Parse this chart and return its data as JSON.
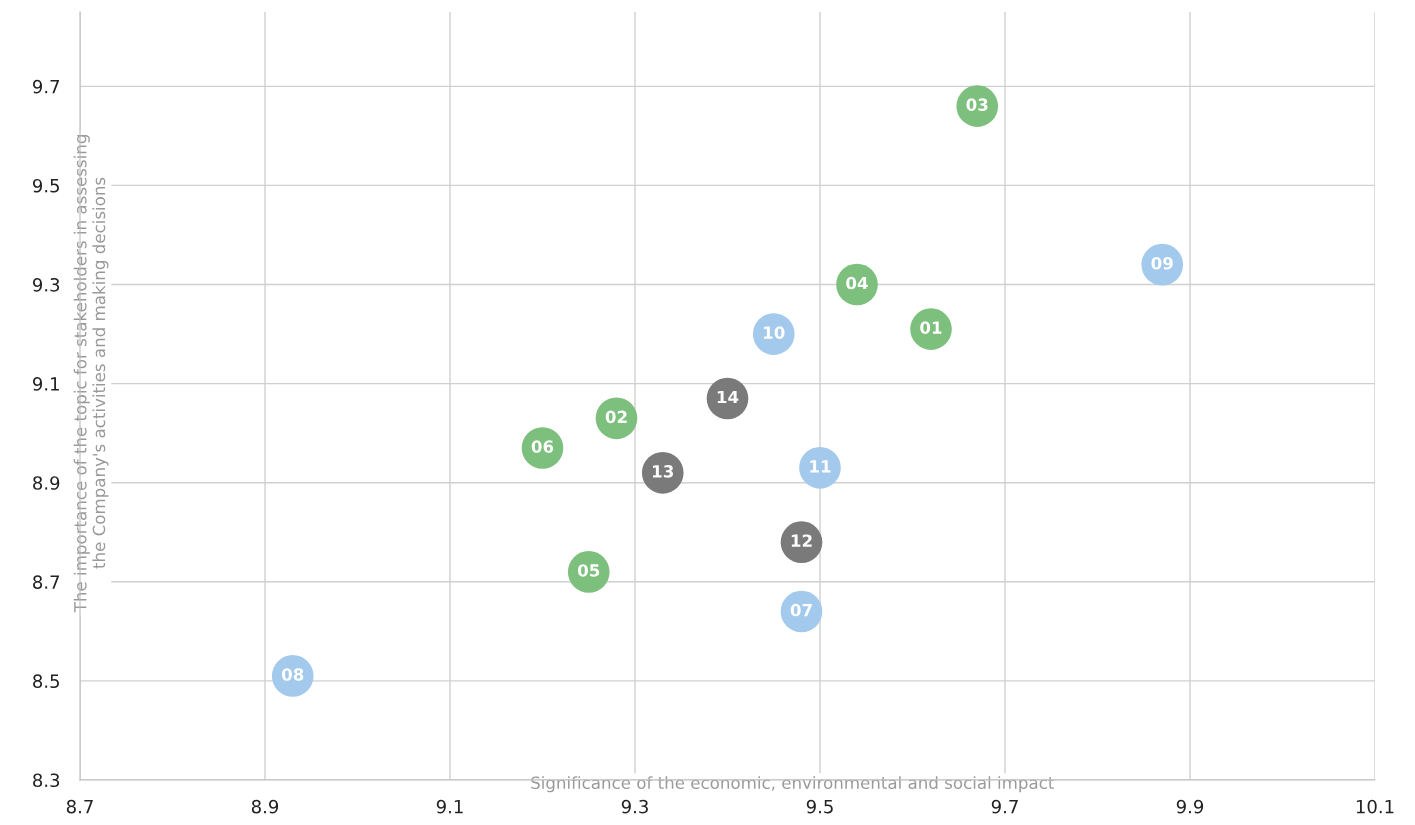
{
  "chart_data": {
    "type": "scatter",
    "xlabel": "Significance of the economic, environmental and social impact",
    "ylabel": "The importance of the topic for stakeholders in assessing\nthe Company's activities and making decisions",
    "xlim": [
      8.7,
      10.1
    ],
    "xticks": [
      8.7,
      8.9,
      9.1,
      9.3,
      9.5,
      9.7,
      9.9,
      10.1
    ],
    "ylim": [
      8.3,
      9.85
    ],
    "yticks": [
      8.3,
      8.5,
      8.7,
      8.9,
      9.1,
      9.3,
      9.5,
      9.7
    ],
    "grid": true,
    "marker": "circle",
    "series": [
      {
        "color": "#7dc07e",
        "x": [
          9.62,
          9.28,
          9.67,
          9.54,
          9.25,
          9.2
        ],
        "values": [
          9.21,
          9.03,
          9.66,
          9.3,
          8.72,
          8.97
        ]
      },
      {
        "color": "#a3caec",
        "x": [
          9.48,
          8.93,
          9.87,
          9.45,
          9.5
        ],
        "values": [
          8.64,
          8.51,
          9.34,
          9.2,
          8.93
        ]
      },
      {
        "color": "#7a7a7a",
        "x": [
          9.48,
          9.33,
          9.4
        ],
        "values": [
          8.78,
          8.92,
          9.07
        ]
      }
    ],
    "annotations": [
      {
        "text": "01",
        "x": 9.62,
        "y": 9.21
      },
      {
        "text": "02",
        "x": 9.28,
        "y": 9.03
      },
      {
        "text": "03",
        "x": 9.67,
        "y": 9.66
      },
      {
        "text": "04",
        "x": 9.54,
        "y": 9.3
      },
      {
        "text": "05",
        "x": 9.25,
        "y": 8.72
      },
      {
        "text": "06",
        "x": 9.2,
        "y": 8.97
      },
      {
        "text": "07",
        "x": 9.48,
        "y": 8.64
      },
      {
        "text": "08",
        "x": 8.93,
        "y": 8.51
      },
      {
        "text": "09",
        "x": 9.87,
        "y": 9.34
      },
      {
        "text": "10",
        "x": 9.45,
        "y": 9.2
      },
      {
        "text": "11",
        "x": 9.5,
        "y": 8.93
      },
      {
        "text": "12",
        "x": 9.48,
        "y": 8.78
      },
      {
        "text": "13",
        "x": 9.33,
        "y": 8.92
      },
      {
        "text": "14",
        "x": 9.4,
        "y": 9.07
      }
    ]
  }
}
